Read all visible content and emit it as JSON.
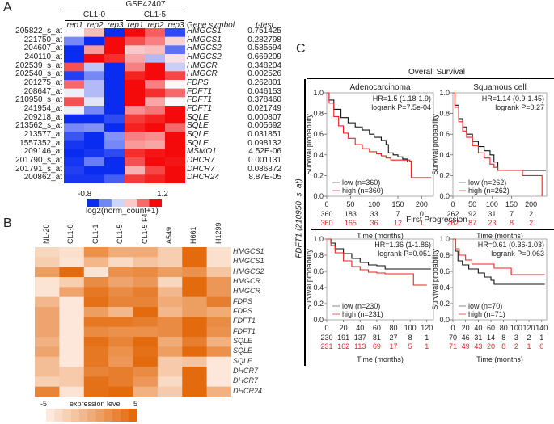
{
  "panelA": {
    "letter": "A",
    "dataset": "GSE42407",
    "groups": [
      "CL1-0",
      "CL1-5"
    ],
    "reps": [
      "rep1",
      "rep2",
      "rep3",
      "rep1",
      "rep2",
      "rep3"
    ],
    "gene_symbol_header": "Gene symbol",
    "ttest_header": "t-test",
    "rows": [
      {
        "probe": "205822_s_at",
        "gene": "HMGCS1",
        "p": "0.751425",
        "v": [
          0.2,
          0.45,
          -0.8,
          1.2,
          0.85,
          -0.65
        ]
      },
      {
        "probe": "221750_at",
        "gene": "HMGCS1",
        "p": "0.282798",
        "v": [
          -0.35,
          -0.8,
          1.2,
          0.9,
          0.7,
          0.35
        ]
      },
      {
        "probe": "204607_at",
        "gene": "HMGCS2",
        "p": "0.585594",
        "v": [
          -0.8,
          0.6,
          1.2,
          0.4,
          0.45,
          -0.45
        ]
      },
      {
        "probe": "240110_at",
        "gene": "HMGCS2",
        "p": "0.669209",
        "v": [
          -0.8,
          1.2,
          1.05,
          0.55,
          -0.1,
          0.3
        ]
      },
      {
        "probe": "202539_s_at",
        "gene": "HMGCR",
        "p": "0.348204",
        "v": [
          0.9,
          -0.05,
          -0.8,
          0.7,
          1.2,
          0.0
        ]
      },
      {
        "probe": "202540_s_at",
        "gene": "HMGCR",
        "p": "0.002526",
        "v": [
          -0.7,
          -0.35,
          -0.8,
          1.1,
          1.2,
          0.95
        ]
      },
      {
        "probe": "201275_at",
        "gene": "FDPS",
        "p": "0.262801",
        "v": [
          0.8,
          -0.1,
          -0.8,
          1.2,
          0.7,
          0.2
        ]
      },
      {
        "probe": "208647_at",
        "gene": "FDFT1",
        "p": "0.046153",
        "v": [
          0.15,
          -0.1,
          -0.8,
          1.2,
          1.05,
          0.8
        ]
      },
      {
        "probe": "210950_s_at",
        "gene": "FDFT1",
        "p": "0.378460",
        "v": [
          0.9,
          0.1,
          -0.8,
          1.2,
          0.55,
          0.2
        ]
      },
      {
        "probe": "241954_at",
        "gene": "FDFT1",
        "p": "0.021749",
        "v": [
          0.15,
          -0.35,
          -0.8,
          0.65,
          0.75,
          1.2
        ]
      },
      {
        "probe": "209218_at",
        "gene": "SQLE",
        "p": "0.000807",
        "v": [
          -0.8,
          -0.8,
          -0.65,
          1.0,
          1.1,
          1.2
        ]
      },
      {
        "probe": "213562_s_at",
        "gene": "SQLE",
        "p": "0.005692",
        "v": [
          -0.35,
          -0.3,
          -0.8,
          1.1,
          1.2,
          0.8
        ]
      },
      {
        "probe": "213577_at",
        "gene": "SQLE",
        "p": "0.031851",
        "v": [
          -0.6,
          -0.8,
          -0.3,
          0.7,
          0.65,
          1.2
        ]
      },
      {
        "probe": "1557352_at",
        "gene": "SQLE",
        "p": "0.098132",
        "v": [
          -0.75,
          -0.8,
          -0.35,
          0.6,
          0.55,
          1.2
        ]
      },
      {
        "probe": "209146_at",
        "gene": "MSMO1",
        "p": "4.52E-06",
        "v": [
          -0.8,
          -0.75,
          -0.65,
          1.05,
          1.15,
          1.2
        ]
      },
      {
        "probe": "201790_s_at",
        "gene": "DHCR7",
        "p": "0.001131",
        "v": [
          -0.75,
          -0.4,
          -0.8,
          0.9,
          1.2,
          1.15
        ]
      },
      {
        "probe": "201791_s_at",
        "gene": "DHCR7",
        "p": "0.086872",
        "v": [
          -0.7,
          -0.8,
          -0.8,
          0.5,
          0.95,
          1.2
        ]
      },
      {
        "probe": "200862_at",
        "gene": "DHCR24",
        "p": "8.87E-05",
        "v": [
          -0.75,
          -0.75,
          -0.55,
          1.0,
          1.1,
          1.2
        ]
      }
    ],
    "legend": {
      "min_label": "-0.8",
      "max_label": "1.2",
      "title": "log2(norm_count+1)",
      "min": -0.8,
      "max": 1.2,
      "colors": [
        "#0a2cf0",
        "#6f88f4",
        "#cdd5fa",
        "#fcc9c9",
        "#f66a6a",
        "#f40a0a"
      ]
    }
  },
  "panelB": {
    "letter": "B",
    "columns": [
      "NL-20",
      "CL1-0",
      "CL1-1",
      "CL1-5",
      "CL1-5 F4",
      "A549",
      "H661",
      "H1299"
    ],
    "rows": [
      {
        "gene": "HMGCS1",
        "v": [
          -3.5,
          -4.2,
          2.0,
          0.0,
          0.0,
          -2.8,
          5.0,
          -4.2
        ]
      },
      {
        "gene": "HMGCS1",
        "v": [
          -2.8,
          -4.5,
          -1.0,
          -3.8,
          -2.0,
          -2.8,
          5.0,
          -4.2
        ]
      },
      {
        "gene": "HMGCS2",
        "v": [
          1.0,
          5.0,
          -4.5,
          2.0,
          2.5,
          1.0,
          2.0,
          -2.0
        ]
      },
      {
        "gene": "HMGCR",
        "v": [
          -4.5,
          -2.8,
          2.5,
          0.5,
          1.5,
          -3.5,
          5.0,
          1.5
        ]
      },
      {
        "gene": "HMGCR",
        "v": [
          -4.5,
          0.5,
          4.0,
          2.5,
          3.5,
          -1.0,
          5.0,
          1.5
        ]
      },
      {
        "gene": "FDPS",
        "v": [
          -1.0,
          -4.8,
          4.5,
          3.0,
          3.0,
          0.0,
          1.0,
          3.5
        ]
      },
      {
        "gene": "FDPS",
        "v": [
          0.5,
          -4.8,
          1.0,
          -1.0,
          5.0,
          -1.0,
          1.0,
          0.0
        ]
      },
      {
        "gene": "FDFT1",
        "v": [
          0.5,
          -4.8,
          4.0,
          4.0,
          3.5,
          2.5,
          5.0,
          2.5
        ]
      },
      {
        "gene": "FDFT1",
        "v": [
          0.5,
          -4.8,
          2.5,
          2.0,
          2.0,
          2.5,
          5.0,
          2.0
        ]
      },
      {
        "gene": "SQLE",
        "v": [
          -0.5,
          -4.8,
          4.5,
          3.0,
          5.0,
          0.0,
          3.5,
          -0.5
        ]
      },
      {
        "gene": "SQLE",
        "v": [
          0.5,
          -4.8,
          4.0,
          2.0,
          4.5,
          1.0,
          5.0,
          2.0
        ]
      },
      {
        "gene": "SQLE",
        "v": [
          -1.5,
          -4.8,
          4.0,
          1.5,
          5.0,
          -2.5,
          -2.0,
          -4.8
        ]
      },
      {
        "gene": "DHCR7",
        "v": [
          -1.5,
          -2.5,
          3.0,
          3.5,
          2.5,
          -2.5,
          5.0,
          -4.8
        ]
      },
      {
        "gene": "DHCR7",
        "v": [
          -3.0,
          -2.5,
          4.5,
          3.5,
          1.5,
          -3.8,
          5.0,
          -4.8
        ]
      },
      {
        "gene": "DHCR24",
        "v": [
          3.0,
          -4.5,
          4.5,
          5.0,
          -0.5,
          -2.5,
          5.0,
          -0.5
        ]
      }
    ],
    "legend": {
      "min_label": "-5",
      "max_label": "5",
      "title": "expression level",
      "min": -5,
      "max": 5
    }
  },
  "panelC": {
    "letter": "C",
    "side_label": "FDFT1 (210950_s_at)",
    "overall_title": "Overall Survival",
    "progression_title": "First Progression",
    "y_label": "Survival probability",
    "x_label": "Time (months)",
    "plots": [
      {
        "title": "Adenocarcinoma",
        "hr": "HR=1.5 (1.18-1.9)",
        "logrank": "logrank P=7.5e-04",
        "xmax": 225,
        "xticks": [
          "0",
          "50",
          "100",
          "150",
          "200"
        ],
        "xtick_vals": [
          0,
          50,
          100,
          150,
          200
        ],
        "low_label": "low (n=360)",
        "high_label": "high (n=360)",
        "risk_low": [
          "360",
          "183",
          "33",
          "7",
          "0"
        ],
        "risk_high": [
          "360",
          "165",
          "36",
          "12",
          "1"
        ],
        "low_curve": [
          [
            0,
            1
          ],
          [
            5,
            0.93
          ],
          [
            15,
            0.84
          ],
          [
            30,
            0.76
          ],
          [
            45,
            0.71
          ],
          [
            60,
            0.67
          ],
          [
            75,
            0.64
          ],
          [
            90,
            0.6
          ],
          [
            100,
            0.57
          ],
          [
            115,
            0.54
          ],
          [
            125,
            0.5
          ],
          [
            130,
            0.42
          ],
          [
            140,
            0.4
          ],
          [
            150,
            0.38
          ],
          [
            160,
            0.36
          ],
          [
            170,
            0.33
          ]
        ],
        "high_curve": [
          [
            0,
            1
          ],
          [
            5,
            0.9
          ],
          [
            15,
            0.77
          ],
          [
            25,
            0.68
          ],
          [
            35,
            0.61
          ],
          [
            45,
            0.56
          ],
          [
            60,
            0.5
          ],
          [
            75,
            0.46
          ],
          [
            90,
            0.43
          ],
          [
            105,
            0.41
          ],
          [
            115,
            0.39
          ],
          [
            125,
            0.37
          ],
          [
            135,
            0.35
          ],
          [
            150,
            0.35
          ],
          [
            175,
            0.34
          ],
          [
            178,
            0.18
          ],
          [
            220,
            0.18
          ]
        ]
      },
      {
        "title": "Squamous cell",
        "hr": "HR=1.14 (0.9-1.45)",
        "logrank": "logrank P=0.27",
        "xmax": 240,
        "xticks": [
          "0",
          "50",
          "100",
          "150",
          "200"
        ],
        "xtick_vals": [
          0,
          50,
          100,
          150,
          200
        ],
        "low_label": "low (n=262)",
        "high_label": "high (n=262)",
        "risk_low": [
          "262",
          "92",
          "31",
          "7",
          "2"
        ],
        "risk_high": [
          "262",
          "87",
          "23",
          "8",
          "2"
        ],
        "low_curve": [
          [
            0,
            1
          ],
          [
            5,
            0.88
          ],
          [
            15,
            0.75
          ],
          [
            25,
            0.67
          ],
          [
            35,
            0.6
          ],
          [
            50,
            0.53
          ],
          [
            65,
            0.48
          ],
          [
            80,
            0.44
          ],
          [
            95,
            0.4
          ],
          [
            105,
            0.33
          ],
          [
            115,
            0.25
          ],
          [
            150,
            0.25
          ],
          [
            238,
            0.25
          ]
        ],
        "high_curve": [
          [
            0,
            1
          ],
          [
            5,
            0.86
          ],
          [
            15,
            0.72
          ],
          [
            25,
            0.63
          ],
          [
            35,
            0.57
          ],
          [
            50,
            0.49
          ],
          [
            65,
            0.42
          ],
          [
            80,
            0.37
          ],
          [
            95,
            0.31
          ],
          [
            105,
            0.28
          ],
          [
            115,
            0.25
          ],
          [
            175,
            0.25
          ],
          [
            178,
            0.2
          ],
          [
            228,
            0.2
          ],
          [
            228,
            0.0
          ]
        ]
      },
      {
        "title": "",
        "hr": "HR=1.36 (1-1.86)",
        "logrank": "logrank P=0.051",
        "xmax": 128,
        "xticks": [
          "0",
          "20",
          "40",
          "60",
          "80",
          "100",
          "120"
        ],
        "xtick_vals": [
          0,
          20,
          40,
          60,
          80,
          100,
          120
        ],
        "low_label": "low (n=230)",
        "high_label": "high (n=231)",
        "risk_low": [
          "230",
          "191",
          "137",
          "81",
          "27",
          "8",
          "1"
        ],
        "risk_high": [
          "231",
          "162",
          "113",
          "69",
          "17",
          "5",
          "1"
        ],
        "low_curve": [
          [
            0,
            1
          ],
          [
            5,
            0.95
          ],
          [
            10,
            0.88
          ],
          [
            20,
            0.82
          ],
          [
            30,
            0.76
          ],
          [
            40,
            0.71
          ],
          [
            50,
            0.68
          ],
          [
            60,
            0.67
          ],
          [
            70,
            0.63
          ],
          [
            80,
            0.63
          ],
          [
            125,
            0.63
          ]
        ],
        "high_curve": [
          [
            0,
            1
          ],
          [
            5,
            0.92
          ],
          [
            10,
            0.83
          ],
          [
            20,
            0.73
          ],
          [
            30,
            0.66
          ],
          [
            40,
            0.62
          ],
          [
            50,
            0.59
          ],
          [
            60,
            0.58
          ],
          [
            70,
            0.57
          ],
          [
            104,
            0.57
          ],
          [
            104,
            0.43
          ],
          [
            120,
            0.43
          ]
        ]
      },
      {
        "title": "",
        "hr": "HR=0.61 (0.36-1.03)",
        "logrank": "logrank P=0.063",
        "xmax": 148,
        "xticks": [
          "0",
          "20",
          "40",
          "60",
          "80",
          "100",
          "120",
          "140"
        ],
        "xtick_vals": [
          0,
          20,
          40,
          60,
          80,
          100,
          120,
          140
        ],
        "low_label": "low (n=70)",
        "high_label": "high (n=71)",
        "risk_low": [
          "70",
          "46",
          "31",
          "14",
          "8",
          "3",
          "2",
          "1"
        ],
        "risk_high": [
          "71",
          "49",
          "43",
          "20",
          "8",
          "2",
          "1",
          "0"
        ],
        "low_curve": [
          [
            0,
            1
          ],
          [
            4,
            0.85
          ],
          [
            8,
            0.73
          ],
          [
            15,
            0.68
          ],
          [
            25,
            0.63
          ],
          [
            40,
            0.58
          ],
          [
            50,
            0.53
          ],
          [
            60,
            0.49
          ],
          [
            65,
            0.44
          ],
          [
            145,
            0.44
          ]
        ],
        "high_curve": [
          [
            0,
            1
          ],
          [
            4,
            0.88
          ],
          [
            10,
            0.8
          ],
          [
            20,
            0.74
          ],
          [
            30,
            0.69
          ],
          [
            60,
            0.69
          ],
          [
            65,
            0.64
          ],
          [
            90,
            0.64
          ],
          [
            92,
            0.56
          ],
          [
            145,
            0.56
          ]
        ]
      }
    ]
  }
}
